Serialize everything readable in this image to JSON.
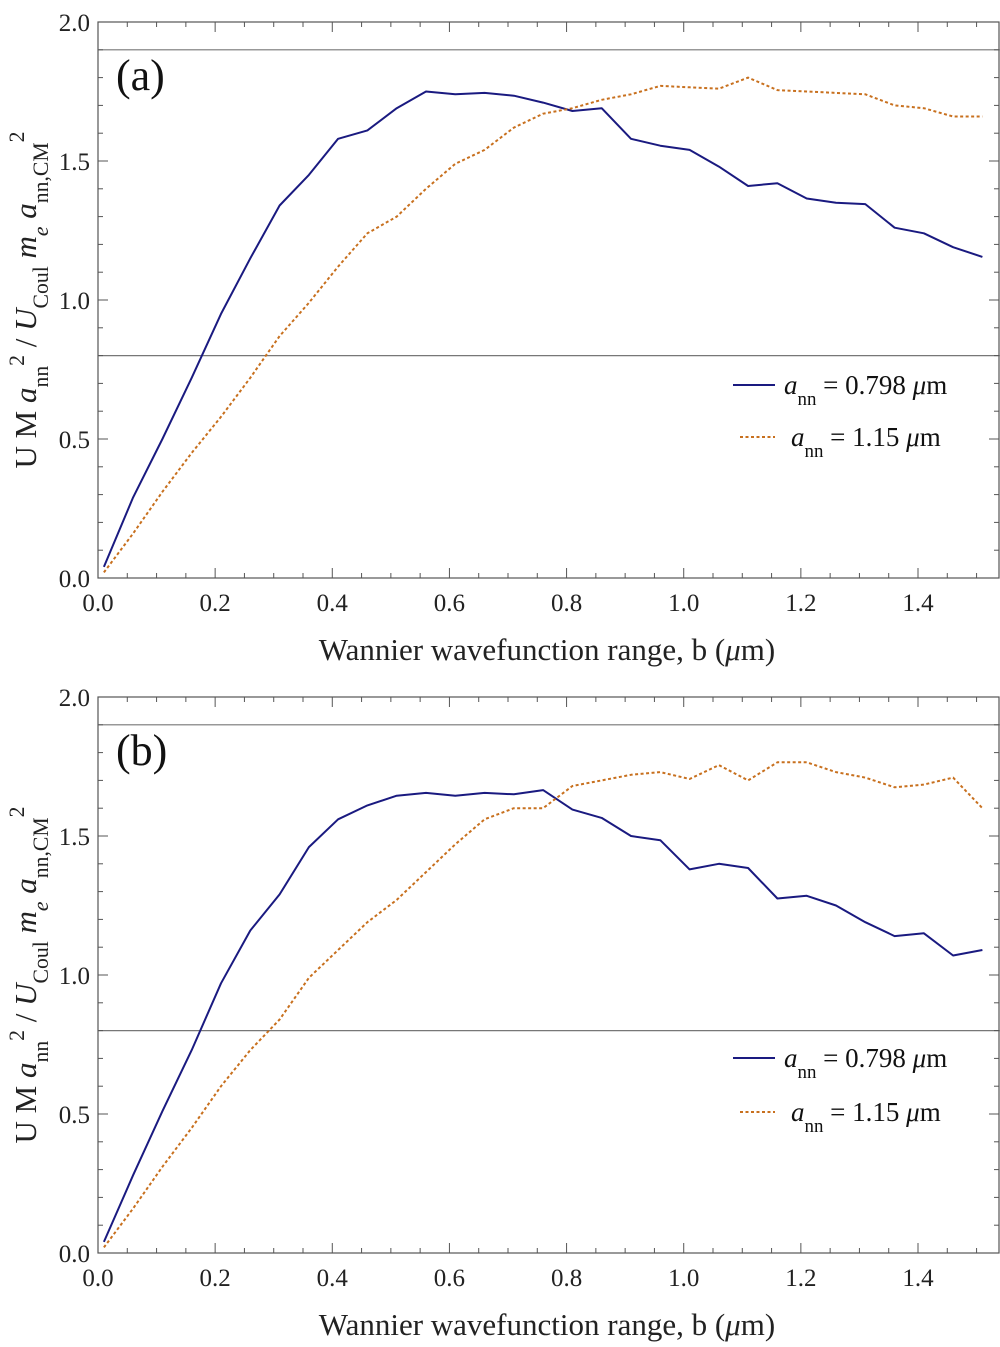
{
  "chart_data": [
    {
      "type": "line",
      "panel_label": "(a)",
      "xlabel": "Wannier wavefunction range, b (μm)",
      "ylabel": "U M a_nn^2 / U_Coul m_e a_nn,CM^2",
      "xlim": [
        0,
        1.54
      ],
      "ylim": [
        0,
        2.0
      ],
      "xticks": [
        0.0,
        0.2,
        0.4,
        0.6,
        0.8,
        1.0,
        1.2,
        1.4
      ],
      "xtick_labels": [
        "0.0",
        "0.2",
        "0.4",
        "0.6",
        "0.8",
        "1.0",
        "1.2",
        "1.4"
      ],
      "yticks": [
        0.0,
        0.5,
        1.0,
        1.5,
        2.0
      ],
      "ytick_labels": [
        "0.0",
        "0.5",
        "1.0",
        "1.5",
        "2.0"
      ],
      "reference_lines": [
        0.8,
        1.9
      ],
      "legend_position": "right-middle",
      "series": [
        {
          "name": "a_nn = 0.798 μm",
          "style": "solid",
          "color": "#1a1a80",
          "x": [
            0.01,
            0.06,
            0.11,
            0.16,
            0.21,
            0.26,
            0.31,
            0.36,
            0.41,
            0.46,
            0.51,
            0.56,
            0.61,
            0.66,
            0.71,
            0.76,
            0.81,
            0.86,
            0.91,
            0.96,
            1.01,
            1.06,
            1.11,
            1.16,
            1.21,
            1.26,
            1.31,
            1.36,
            1.41,
            1.46,
            1.51
          ],
          "y": [
            0.04,
            0.29,
            0.5,
            0.72,
            0.95,
            1.15,
            1.34,
            1.45,
            1.58,
            1.61,
            1.69,
            1.75,
            1.74,
            1.745,
            1.735,
            1.71,
            1.68,
            1.69,
            1.58,
            1.555,
            1.54,
            1.48,
            1.41,
            1.42,
            1.365,
            1.35,
            1.345,
            1.26,
            1.24,
            1.19,
            1.155
          ]
        },
        {
          "name": "a_nn = 1.15 μm",
          "style": "dotted",
          "color": "#c8701e",
          "x": [
            0.01,
            0.06,
            0.11,
            0.16,
            0.21,
            0.26,
            0.31,
            0.36,
            0.41,
            0.46,
            0.51,
            0.56,
            0.61,
            0.66,
            0.71,
            0.76,
            0.81,
            0.86,
            0.91,
            0.96,
            1.01,
            1.06,
            1.11,
            1.16,
            1.21,
            1.26,
            1.31,
            1.36,
            1.41,
            1.46,
            1.51
          ],
          "y": [
            0.02,
            0.16,
            0.31,
            0.45,
            0.58,
            0.72,
            0.87,
            0.99,
            1.12,
            1.24,
            1.3,
            1.4,
            1.49,
            1.54,
            1.62,
            1.67,
            1.69,
            1.72,
            1.74,
            1.77,
            1.765,
            1.76,
            1.8,
            1.755,
            1.75,
            1.745,
            1.74,
            1.7,
            1.69,
            1.66,
            1.66
          ]
        }
      ]
    },
    {
      "type": "line",
      "panel_label": "(b)",
      "xlabel": "Wannier wavefunction range, b (μm)",
      "ylabel": "U M a_nn^2 / U_Coul m_e a_nn,CM^2",
      "xlim": [
        0,
        1.54
      ],
      "ylim": [
        0,
        2.0
      ],
      "xticks": [
        0.0,
        0.2,
        0.4,
        0.6,
        0.8,
        1.0,
        1.2,
        1.4
      ],
      "xtick_labels": [
        "0.0",
        "0.2",
        "0.4",
        "0.6",
        "0.8",
        "1.0",
        "1.2",
        "1.4"
      ],
      "yticks": [
        0.0,
        0.5,
        1.0,
        1.5,
        2.0
      ],
      "ytick_labels": [
        "0.0",
        "0.5",
        "1.0",
        "1.5",
        "2.0"
      ],
      "reference_lines": [
        0.8,
        1.9
      ],
      "legend_position": "right-middle",
      "series": [
        {
          "name": "a_nn = 0.798 μm",
          "style": "solid",
          "color": "#1a1a80",
          "x": [
            0.01,
            0.06,
            0.11,
            0.16,
            0.21,
            0.26,
            0.31,
            0.36,
            0.41,
            0.46,
            0.51,
            0.56,
            0.61,
            0.66,
            0.71,
            0.76,
            0.81,
            0.86,
            0.91,
            0.96,
            1.01,
            1.06,
            1.11,
            1.16,
            1.21,
            1.26,
            1.31,
            1.36,
            1.41,
            1.46,
            1.51
          ],
          "y": [
            0.04,
            0.28,
            0.51,
            0.73,
            0.97,
            1.16,
            1.29,
            1.46,
            1.56,
            1.61,
            1.645,
            1.655,
            1.645,
            1.655,
            1.65,
            1.665,
            1.595,
            1.565,
            1.5,
            1.485,
            1.38,
            1.4,
            1.385,
            1.275,
            1.285,
            1.25,
            1.19,
            1.14,
            1.15,
            1.07,
            1.09
          ]
        },
        {
          "name": "a_nn = 1.15 μm",
          "style": "dotted",
          "color": "#c8701e",
          "x": [
            0.01,
            0.06,
            0.11,
            0.16,
            0.21,
            0.26,
            0.31,
            0.36,
            0.41,
            0.46,
            0.51,
            0.56,
            0.61,
            0.66,
            0.71,
            0.76,
            0.81,
            0.86,
            0.91,
            0.96,
            1.01,
            1.06,
            1.11,
            1.16,
            1.21,
            1.26,
            1.31,
            1.36,
            1.41,
            1.46,
            1.51
          ],
          "y": [
            0.02,
            0.16,
            0.31,
            0.45,
            0.6,
            0.73,
            0.84,
            0.99,
            1.09,
            1.19,
            1.27,
            1.37,
            1.47,
            1.56,
            1.6,
            1.6,
            1.68,
            1.7,
            1.72,
            1.73,
            1.705,
            1.755,
            1.7,
            1.765,
            1.765,
            1.73,
            1.71,
            1.675,
            1.685,
            1.71,
            1.6
          ]
        }
      ]
    }
  ]
}
